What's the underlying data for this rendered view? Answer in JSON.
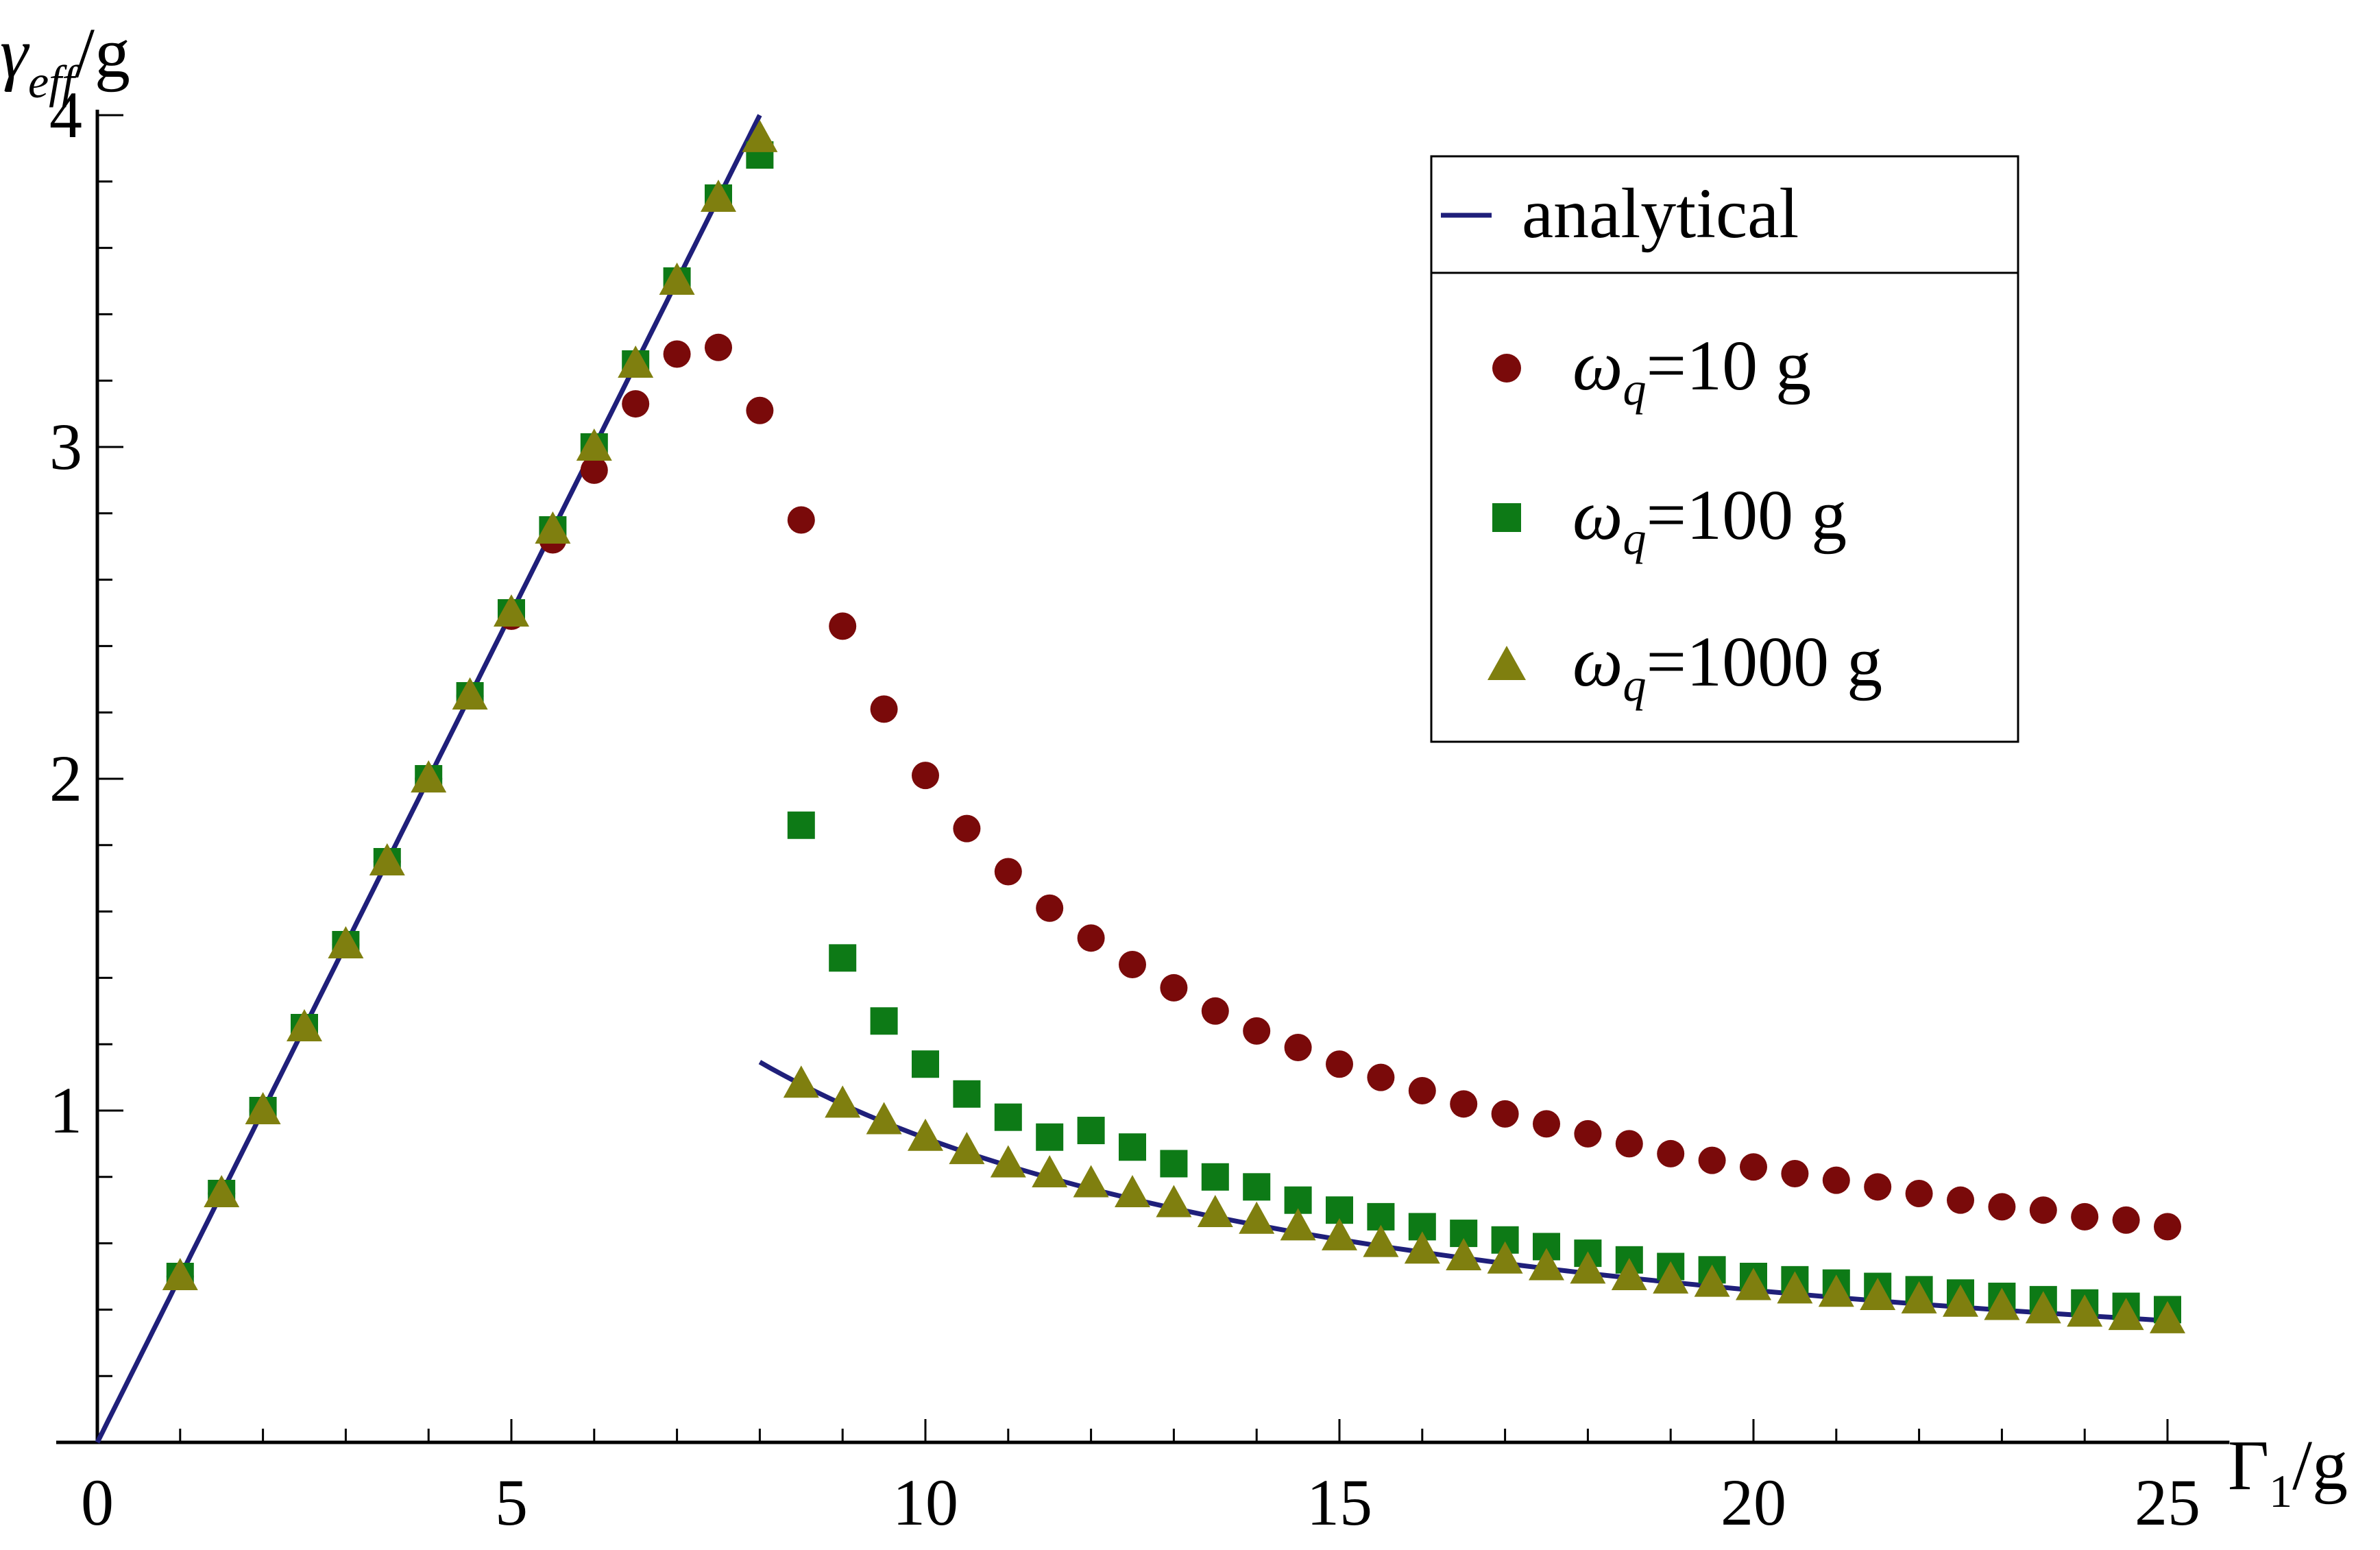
{
  "chart_data": {
    "type": "scatter",
    "title": "",
    "xlabel": {
      "main": "Γ",
      "sub": "1",
      "tail": "/g"
    },
    "ylabel": {
      "main": "γ",
      "sub": "eff",
      "tail": "/g"
    },
    "xlim": [
      0,
      25.5
    ],
    "ylim": [
      0,
      4
    ],
    "x_ticks": [
      0,
      5,
      10,
      15,
      20,
      25
    ],
    "x_tick_labels": [
      "0",
      "5",
      "10",
      "15",
      "20",
      "25"
    ],
    "y_ticks": [
      1,
      2,
      3,
      4
    ],
    "y_tick_labels": [
      "1",
      "2",
      "3",
      "4"
    ],
    "x_minor_step": 1,
    "y_minor_step": 0.2,
    "legend_position": "top-right",
    "analytical": {
      "name": "analytical",
      "color": "#1f1f7a",
      "segments": [
        {
          "type": "linear",
          "x0": 0,
          "x1": 8,
          "slope": 0.5
        },
        {
          "type": "inverse",
          "x0": 8,
          "x1": 25,
          "k": 9.17
        }
      ]
    },
    "series": [
      {
        "name": "10 g",
        "marker": "circle",
        "color": "#7a0a0a",
        "x": [
          1,
          1.5,
          2,
          2.5,
          3,
          3.5,
          4,
          4.5,
          5,
          5.5,
          6,
          6.5,
          7,
          7.5,
          8,
          8.5,
          9,
          9.5,
          10,
          10.5,
          11,
          11.5,
          12,
          12.5,
          13,
          13.5,
          14,
          14.5,
          15,
          15.5,
          16,
          16.5,
          17,
          17.5,
          18,
          18.5,
          19,
          19.5,
          20,
          20.5,
          21,
          21.5,
          22,
          22.5,
          23,
          23.5,
          24,
          24.5,
          25
        ],
        "y": [
          0.5,
          0.75,
          1.0,
          1.25,
          1.5,
          1.75,
          2.0,
          2.25,
          2.49,
          2.72,
          2.93,
          3.13,
          3.28,
          3.3,
          3.11,
          2.78,
          2.46,
          2.21,
          2.01,
          1.85,
          1.72,
          1.61,
          1.52,
          1.44,
          1.37,
          1.3,
          1.24,
          1.19,
          1.14,
          1.1,
          1.06,
          1.02,
          0.99,
          0.96,
          0.93,
          0.9,
          0.87,
          0.85,
          0.83,
          0.81,
          0.79,
          0.77,
          0.75,
          0.73,
          0.71,
          0.7,
          0.68,
          0.67,
          0.65
        ]
      },
      {
        "name": "100 g",
        "marker": "square",
        "color": "#0d7a16",
        "x": [
          1,
          1.5,
          2,
          2.5,
          3,
          3.5,
          4,
          4.5,
          5,
          5.5,
          6,
          6.5,
          7,
          7.5,
          8,
          8.5,
          9,
          9.5,
          10,
          10.5,
          11,
          11.5,
          12,
          12.5,
          13,
          13.5,
          14,
          14.5,
          15,
          15.5,
          16,
          16.5,
          17,
          17.5,
          18,
          18.5,
          19,
          19.5,
          20,
          20.5,
          21,
          21.5,
          22,
          22.5,
          23,
          23.5,
          24,
          24.5,
          25
        ],
        "y": [
          0.5,
          0.75,
          1.0,
          1.25,
          1.5,
          1.75,
          2.0,
          2.25,
          2.5,
          2.75,
          3.0,
          3.25,
          3.5,
          3.75,
          3.88,
          1.86,
          1.46,
          1.27,
          1.14,
          1.05,
          0.98,
          0.92,
          0.94,
          0.89,
          0.84,
          0.8,
          0.77,
          0.73,
          0.7,
          0.68,
          0.65,
          0.63,
          0.61,
          0.59,
          0.57,
          0.55,
          0.53,
          0.52,
          0.5,
          0.49,
          0.48,
          0.47,
          0.46,
          0.45,
          0.44,
          0.43,
          0.42,
          0.41,
          0.4
        ]
      },
      {
        "name": "1000 g",
        "marker": "triangle",
        "color": "#7f7f0f",
        "x": [
          1,
          1.5,
          2,
          2.5,
          3,
          3.5,
          4,
          4.5,
          5,
          5.5,
          6,
          6.5,
          7,
          7.5,
          8,
          8.5,
          9,
          9.5,
          10,
          10.5,
          11,
          11.5,
          12,
          12.5,
          13,
          13.5,
          14,
          14.5,
          15,
          15.5,
          16,
          16.5,
          17,
          17.5,
          18,
          18.5,
          19,
          19.5,
          20,
          20.5,
          21,
          21.5,
          22,
          22.5,
          23,
          23.5,
          24,
          24.5,
          25
        ],
        "y": [
          0.5,
          0.75,
          1.0,
          1.25,
          1.5,
          1.75,
          2.0,
          2.25,
          2.5,
          2.75,
          3.0,
          3.25,
          3.5,
          3.75,
          3.93,
          1.08,
          1.02,
          0.97,
          0.92,
          0.88,
          0.84,
          0.81,
          0.78,
          0.75,
          0.72,
          0.69,
          0.67,
          0.65,
          0.62,
          0.6,
          0.58,
          0.56,
          0.55,
          0.53,
          0.52,
          0.5,
          0.49,
          0.48,
          0.47,
          0.46,
          0.45,
          0.44,
          0.43,
          0.42,
          0.41,
          0.4,
          0.39,
          0.38,
          0.37
        ]
      }
    ],
    "legend": {
      "header": "analytical",
      "items": [
        {
          "symbol": "ω",
          "sub": "q",
          "text": "=10 g"
        },
        {
          "symbol": "ω",
          "sub": "q",
          "text": "=100 g"
        },
        {
          "symbol": "ω",
          "sub": "q",
          "text": "=1000 g"
        }
      ]
    }
  }
}
